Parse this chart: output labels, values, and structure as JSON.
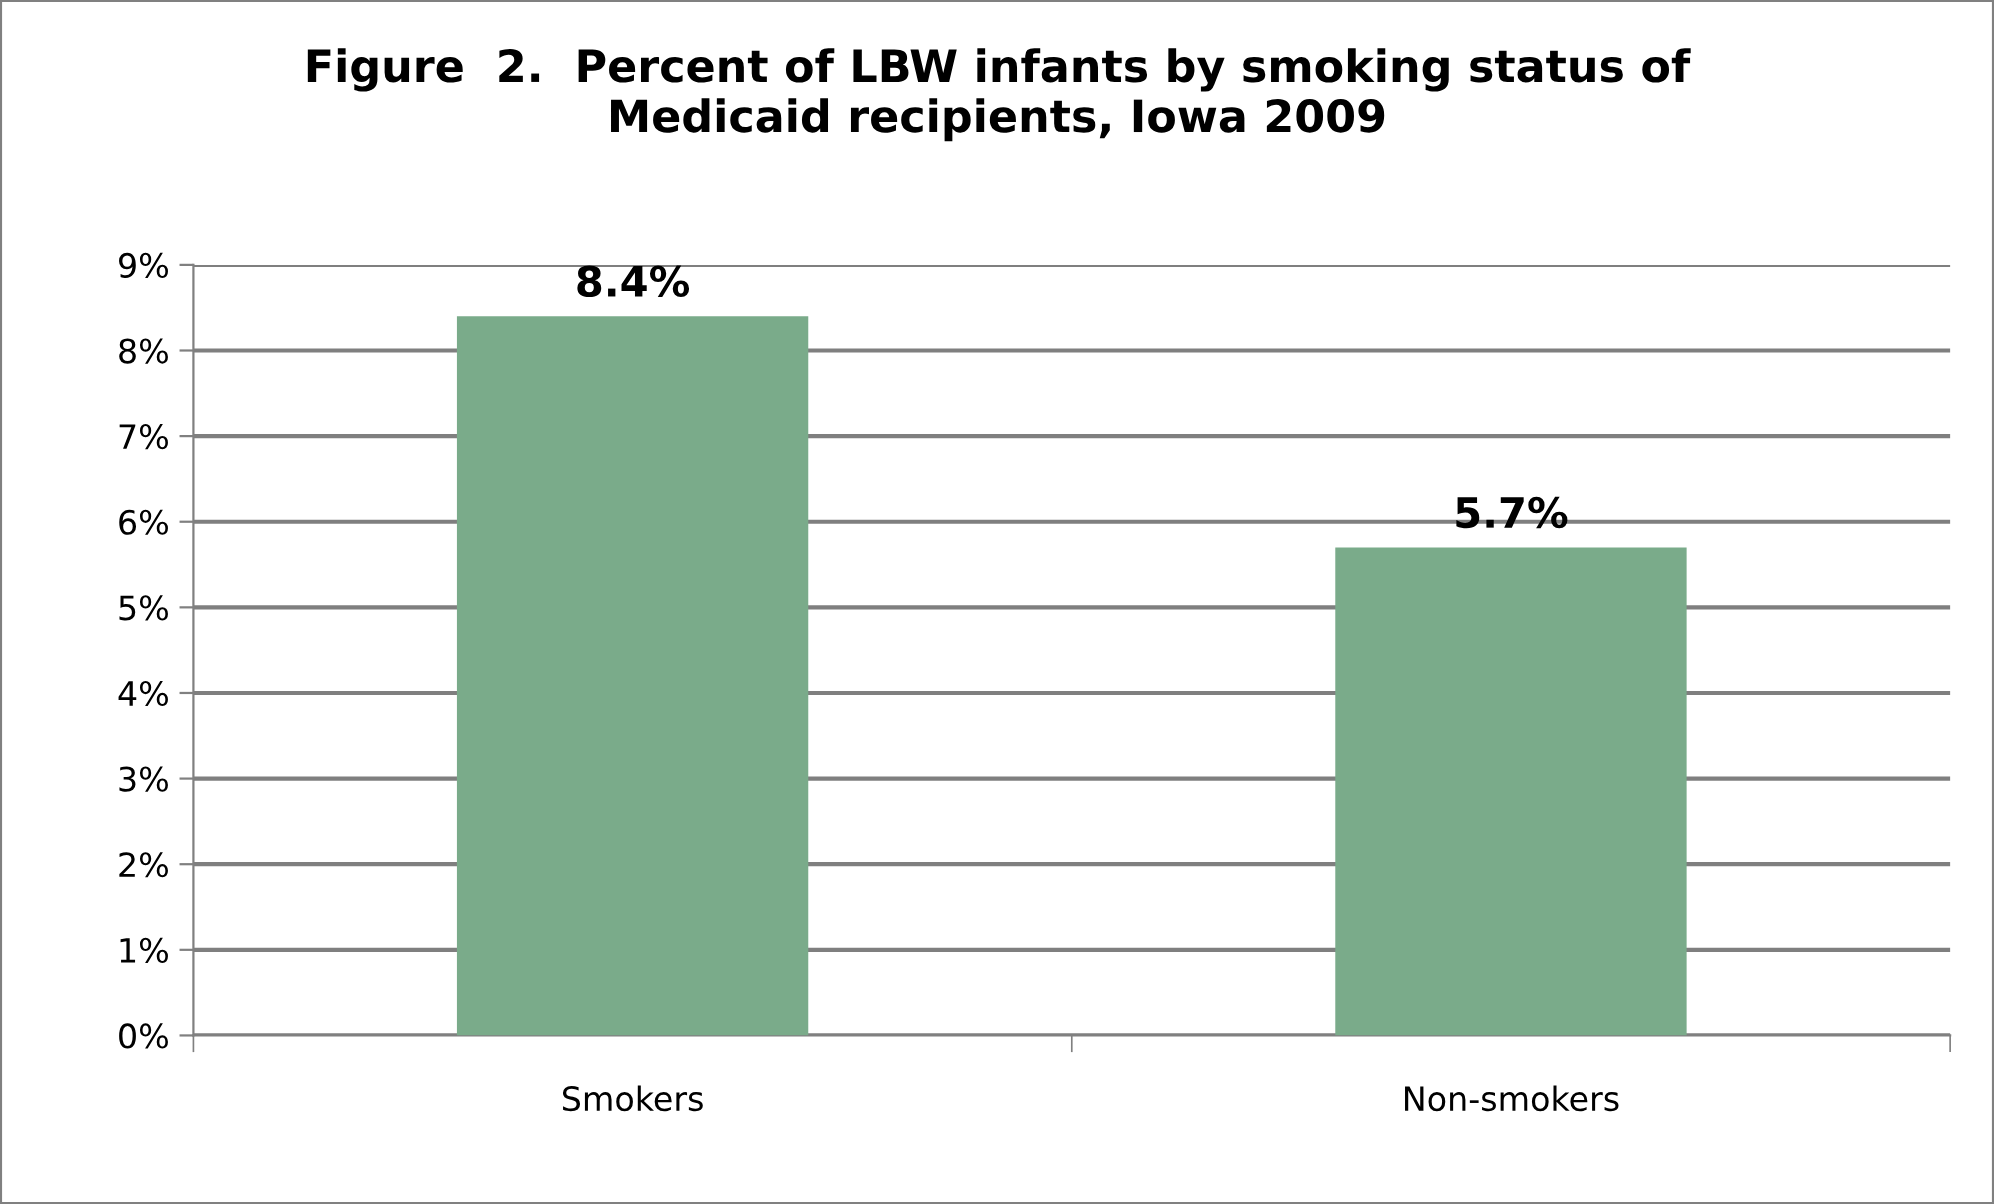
{
  "chart_data": {
    "type": "bar",
    "title": "Figure  2.  Percent of LBW infants by smoking status of\nMedicaid recipients, Iowa 2009",
    "categories": [
      "Smokers",
      "Non-smokers"
    ],
    "values": [
      8.4,
      5.7
    ],
    "value_labels": [
      "8.4%",
      "5.7%"
    ],
    "color": "#7aab8a",
    "ylim": [
      0,
      9
    ],
    "yticks": [
      {
        "value": 0,
        "label": "0%"
      },
      {
        "value": 1,
        "label": "1%"
      },
      {
        "value": 2,
        "label": "2%"
      },
      {
        "value": 3,
        "label": "3%"
      },
      {
        "value": 4,
        "label": "4%"
      },
      {
        "value": 5,
        "label": "5%"
      },
      {
        "value": 6,
        "label": "6%"
      },
      {
        "value": 7,
        "label": "7%"
      },
      {
        "value": 8,
        "label": "8%"
      },
      {
        "value": 9,
        "label": "9%"
      }
    ],
    "grid": "y",
    "legend": false
  }
}
